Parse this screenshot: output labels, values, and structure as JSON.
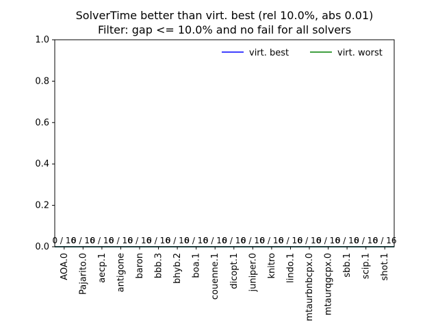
{
  "chart_data": {
    "type": "bar",
    "title": "SolverTime better than virt. best (rel 10.0%, abs 0.01)",
    "subtitle": "Filter: gap <= 10.0% and no fail for all solvers",
    "xlabel": "",
    "ylabel": "",
    "ylim": [
      0,
      1.0
    ],
    "yticks": [
      "0.0",
      "0.2",
      "0.4",
      "0.6",
      "0.8",
      "1.0"
    ],
    "grid": false,
    "legend_position": "top-right",
    "categories": [
      "AOA.0",
      "Pajarito.0",
      "aecp.1",
      "antigone",
      "baron",
      "bbb.3",
      "bhyb.2",
      "boa.1",
      "couenne.1",
      "dicopt.1",
      "juniper.0",
      "knitro",
      "lindo.1",
      "mtaurbnbcpx.0",
      "mtaurqgcpx.0",
      "sbb.1",
      "scip.1",
      "shot.1"
    ],
    "values": [
      0,
      0,
      0,
      0,
      0,
      0,
      0,
      0,
      0,
      0,
      0,
      0,
      0,
      0,
      0,
      0,
      0,
      0
    ],
    "bar_labels": [
      "0 / 16",
      "0 / 16",
      "0 / 16",
      "0 / 16",
      "0 / 16",
      "0 / 16",
      "0 / 16",
      "0 / 16",
      "0 / 16",
      "0 / 16",
      "0 / 16",
      "0 / 16",
      "0 / 16",
      "0 / 16",
      "0 / 16",
      "0 / 16",
      "0 / 16",
      "0 / 16"
    ],
    "lines": [
      {
        "name": "virt. best",
        "color": "#0000ff",
        "values": [
          0,
          0
        ]
      },
      {
        "name": "virt. worst",
        "color": "#008000",
        "values": [
          0,
          0
        ]
      }
    ]
  }
}
